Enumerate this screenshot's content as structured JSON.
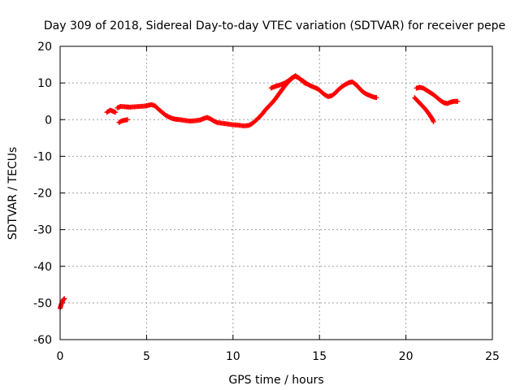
{
  "chart_data": {
    "type": "scatter",
    "title": "Day 309 of 2018, Sidereal Day-to-day VTEC variation (SDTVAR) for receiver pepe",
    "xlabel": "GPS time / hours",
    "ylabel": "SDTVAR / TECUs",
    "xlim": [
      0,
      25
    ],
    "ylim": [
      -60,
      20
    ],
    "xticks": [
      0,
      5,
      10,
      15,
      20,
      25
    ],
    "yticks": [
      -60,
      -50,
      -40,
      -30,
      -20,
      -10,
      0,
      10,
      20
    ],
    "grid": true,
    "marker": "plus",
    "color": "#ff0000",
    "series": [
      {
        "name": "",
        "segments": [
          [
            [
              0.0,
              -51.5
            ],
            [
              0.05,
              -50.5
            ],
            [
              0.1,
              -50.0
            ],
            [
              0.15,
              -49.5
            ],
            [
              0.2,
              -49.0
            ],
            [
              0.25,
              -48.8
            ]
          ],
          [
            [
              2.7,
              2.0
            ],
            [
              2.8,
              2.3
            ],
            [
              2.9,
              2.6
            ],
            [
              3.0,
              2.4
            ],
            [
              3.1,
              2.2
            ],
            [
              3.2,
              2.0
            ]
          ],
          [
            [
              3.4,
              -0.8
            ],
            [
              3.5,
              -0.5
            ],
            [
              3.6,
              -0.3
            ],
            [
              3.7,
              -0.2
            ],
            [
              3.8,
              -0.1
            ],
            [
              3.9,
              0.0
            ]
          ],
          [
            [
              3.3,
              3.2
            ],
            [
              3.5,
              3.6
            ],
            [
              3.8,
              3.5
            ],
            [
              4.0,
              3.4
            ],
            [
              4.3,
              3.5
            ],
            [
              4.6,
              3.6
            ],
            [
              4.9,
              3.7
            ],
            [
              5.1,
              3.9
            ],
            [
              5.3,
              4.1
            ],
            [
              5.5,
              3.7
            ],
            [
              5.7,
              2.8
            ],
            [
              5.9,
              2.0
            ],
            [
              6.1,
              1.2
            ],
            [
              6.3,
              0.7
            ],
            [
              6.5,
              0.3
            ],
            [
              6.7,
              0.1
            ],
            [
              6.9,
              0.0
            ],
            [
              7.2,
              -0.2
            ],
            [
              7.5,
              -0.4
            ],
            [
              7.8,
              -0.3
            ],
            [
              8.1,
              -0.1
            ],
            [
              8.3,
              0.3
            ],
            [
              8.5,
              0.6
            ],
            [
              8.7,
              0.2
            ],
            [
              8.9,
              -0.4
            ],
            [
              9.1,
              -0.8
            ],
            [
              9.4,
              -1.0
            ],
            [
              9.7,
              -1.2
            ],
            [
              10.0,
              -1.4
            ],
            [
              10.3,
              -1.5
            ],
            [
              10.6,
              -1.7
            ],
            [
              10.9,
              -1.6
            ],
            [
              11.1,
              -1.1
            ],
            [
              11.3,
              -0.3
            ],
            [
              11.5,
              0.6
            ],
            [
              11.7,
              1.6
            ],
            [
              11.9,
              2.8
            ],
            [
              12.1,
              3.8
            ],
            [
              12.3,
              4.8
            ],
            [
              12.5,
              6.0
            ],
            [
              12.7,
              7.3
            ],
            [
              12.9,
              8.6
            ],
            [
              13.1,
              9.8
            ],
            [
              13.3,
              10.8
            ],
            [
              13.5,
              11.6
            ],
            [
              13.6,
              12.0
            ],
            [
              13.7,
              11.7
            ],
            [
              13.9,
              11.0
            ],
            [
              14.1,
              10.4
            ],
            [
              14.3,
              9.7
            ],
            [
              14.5,
              9.2
            ],
            [
              14.7,
              8.8
            ],
            [
              14.9,
              8.4
            ],
            [
              15.1,
              7.6
            ],
            [
              15.3,
              6.8
            ],
            [
              15.5,
              6.3
            ],
            [
              15.7,
              6.5
            ],
            [
              15.9,
              7.2
            ],
            [
              16.1,
              8.2
            ],
            [
              16.3,
              9.0
            ],
            [
              16.5,
              9.6
            ],
            [
              16.7,
              10.1
            ],
            [
              16.9,
              10.3
            ],
            [
              17.1,
              9.6
            ],
            [
              17.3,
              8.6
            ],
            [
              17.5,
              7.6
            ],
            [
              17.7,
              7.0
            ],
            [
              17.9,
              6.6
            ],
            [
              18.1,
              6.2
            ],
            [
              18.3,
              6.0
            ]
          ],
          [
            [
              12.2,
              8.6
            ],
            [
              12.4,
              9.0
            ],
            [
              12.6,
              9.3
            ],
            [
              12.8,
              9.6
            ],
            [
              13.0,
              10.0
            ],
            [
              13.2,
              10.6
            ],
            [
              13.4,
              11.4
            ],
            [
              13.6,
              11.8
            ],
            [
              13.8,
              11.4
            ],
            [
              14.0,
              10.6
            ],
            [
              14.2,
              9.8
            ]
          ],
          [
            [
              20.6,
              8.6
            ],
            [
              20.8,
              8.8
            ],
            [
              21.0,
              8.6
            ],
            [
              21.2,
              8.0
            ],
            [
              21.4,
              7.4
            ],
            [
              21.6,
              6.8
            ],
            [
              21.8,
              6.0
            ],
            [
              22.0,
              5.2
            ],
            [
              22.2,
              4.6
            ],
            [
              22.4,
              4.4
            ],
            [
              22.6,
              4.8
            ],
            [
              22.8,
              5.0
            ],
            [
              23.0,
              5.0
            ]
          ],
          [
            [
              20.5,
              6.0
            ],
            [
              20.7,
              5.0
            ],
            [
              20.9,
              4.0
            ],
            [
              21.1,
              3.0
            ],
            [
              21.3,
              1.8
            ],
            [
              21.5,
              0.4
            ],
            [
              21.6,
              -0.6
            ]
          ]
        ]
      }
    ]
  }
}
